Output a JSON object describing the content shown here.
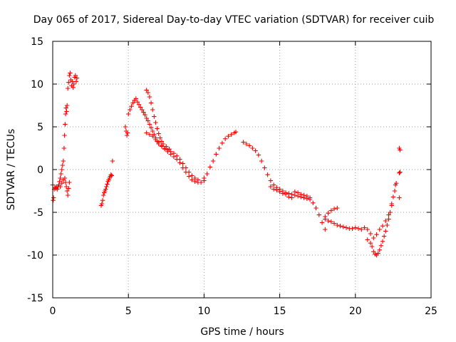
{
  "chart_data": {
    "type": "scatter",
    "title": "Day 065 of 2017, Sidereal Day-to-day VTEC variation (SDTVAR) for receiver cuib",
    "xlabel": "GPS time / hours",
    "ylabel": "SDTVAR / TECUs",
    "xlim": [
      0,
      25
    ],
    "ylim": [
      -15,
      15
    ],
    "x_ticks": [
      0,
      5,
      10,
      15,
      20,
      25
    ],
    "y_ticks": [
      -15,
      -10,
      -5,
      0,
      5,
      10,
      15
    ],
    "x_tick_labels": [
      "0",
      "5",
      "10",
      "15",
      "20",
      "25"
    ],
    "y_tick_labels": [
      "-15",
      "-10",
      "-5",
      "0",
      "5",
      "10",
      "15"
    ],
    "grid": true,
    "marker": "+",
    "color": "#ff0000",
    "series": [
      {
        "name": "SDTVAR",
        "points": [
          [
            0.0,
            -1.8
          ],
          [
            0.03,
            -3.6
          ],
          [
            0.06,
            -3.3
          ],
          [
            0.1,
            -2.3
          ],
          [
            0.15,
            -2.1
          ],
          [
            0.2,
            -2.2
          ],
          [
            0.25,
            -2.0
          ],
          [
            0.3,
            -2.3
          ],
          [
            0.35,
            -2.0
          ],
          [
            0.4,
            -1.8
          ],
          [
            0.45,
            -1.4
          ],
          [
            0.5,
            -1.0
          ],
          [
            0.55,
            -0.5
          ],
          [
            0.6,
            0.0
          ],
          [
            0.65,
            0.5
          ],
          [
            0.7,
            1.0
          ],
          [
            0.75,
            2.5
          ],
          [
            0.78,
            4.0
          ],
          [
            0.82,
            5.3
          ],
          [
            0.85,
            6.5
          ],
          [
            0.88,
            7.2
          ],
          [
            0.92,
            6.8
          ],
          [
            0.95,
            7.5
          ],
          [
            1.0,
            9.5
          ],
          [
            1.05,
            10.2
          ],
          [
            1.1,
            11.0
          ],
          [
            1.15,
            11.3
          ],
          [
            1.2,
            10.5
          ],
          [
            1.25,
            9.8
          ],
          [
            1.3,
            10.3
          ],
          [
            1.35,
            9.6
          ],
          [
            1.4,
            10.0
          ],
          [
            1.45,
            10.8
          ],
          [
            1.5,
            11.0
          ],
          [
            1.55,
            10.3
          ],
          [
            1.6,
            10.7
          ],
          [
            0.8,
            -1.0
          ],
          [
            0.85,
            -1.5
          ],
          [
            0.9,
            -2.0
          ],
          [
            0.95,
            -2.5
          ],
          [
            1.0,
            -3.0
          ],
          [
            1.05,
            -2.2
          ],
          [
            1.1,
            -1.5
          ],
          [
            0.7,
            -1.2
          ],
          [
            0.6,
            -1.6
          ],
          [
            0.5,
            -2.0
          ],
          [
            3.2,
            -4.2
          ],
          [
            3.25,
            -4.0
          ],
          [
            3.3,
            -3.6
          ],
          [
            3.35,
            -3.0
          ],
          [
            3.4,
            -2.7
          ],
          [
            3.45,
            -2.5
          ],
          [
            3.5,
            -2.3
          ],
          [
            3.55,
            -2.0
          ],
          [
            3.6,
            -1.7
          ],
          [
            3.65,
            -1.4
          ],
          [
            3.7,
            -1.2
          ],
          [
            3.75,
            -1.0
          ],
          [
            3.8,
            -0.8
          ],
          [
            3.85,
            -0.6
          ],
          [
            3.9,
            -0.7
          ],
          [
            3.95,
            1.0
          ],
          [
            4.8,
            5.0
          ],
          [
            4.85,
            4.5
          ],
          [
            4.9,
            4.0
          ],
          [
            4.95,
            4.3
          ],
          [
            5.0,
            6.5
          ],
          [
            5.1,
            7.0
          ],
          [
            5.2,
            7.4
          ],
          [
            5.3,
            7.8
          ],
          [
            5.4,
            8.1
          ],
          [
            5.5,
            8.3
          ],
          [
            5.6,
            7.9
          ],
          [
            5.7,
            7.6
          ],
          [
            5.8,
            7.3
          ],
          [
            5.9,
            7.0
          ],
          [
            6.0,
            6.7
          ],
          [
            6.1,
            6.4
          ],
          [
            6.2,
            6.0
          ],
          [
            6.3,
            5.7
          ],
          [
            6.4,
            5.3
          ],
          [
            6.5,
            4.9
          ],
          [
            6.6,
            4.5
          ],
          [
            6.7,
            4.1
          ],
          [
            6.8,
            3.7
          ],
          [
            6.9,
            3.3
          ],
          [
            7.0,
            3.0
          ],
          [
            7.2,
            2.7
          ],
          [
            7.4,
            2.4
          ],
          [
            7.6,
            2.1
          ],
          [
            7.8,
            1.8
          ],
          [
            8.0,
            1.5
          ],
          [
            8.2,
            1.2
          ],
          [
            8.4,
            0.8
          ],
          [
            8.6,
            0.2
          ],
          [
            8.8,
            -0.3
          ],
          [
            9.0,
            -0.8
          ],
          [
            9.2,
            -1.2
          ],
          [
            9.4,
            -1.4
          ],
          [
            9.6,
            -1.5
          ],
          [
            9.8,
            -1.5
          ],
          [
            10.0,
            -1.3
          ],
          [
            6.2,
            4.3
          ],
          [
            6.4,
            4.1
          ],
          [
            6.6,
            3.9
          ],
          [
            6.8,
            3.5
          ],
          [
            7.0,
            3.2
          ],
          [
            7.2,
            2.8
          ],
          [
            7.4,
            2.5
          ],
          [
            7.6,
            2.3
          ],
          [
            7.8,
            2.1
          ],
          [
            8.0,
            1.9
          ],
          [
            8.2,
            1.6
          ],
          [
            8.4,
            1.2
          ],
          [
            8.6,
            0.7
          ],
          [
            8.8,
            0.2
          ],
          [
            9.0,
            -0.3
          ],
          [
            9.2,
            -0.7
          ],
          [
            9.4,
            -1.0
          ],
          [
            9.6,
            -1.2
          ],
          [
            6.2,
            9.3
          ],
          [
            6.3,
            9.0
          ],
          [
            6.4,
            8.5
          ],
          [
            6.5,
            7.8
          ],
          [
            6.6,
            7.0
          ],
          [
            6.7,
            6.2
          ],
          [
            6.8,
            5.5
          ],
          [
            6.9,
            4.8
          ],
          [
            7.0,
            4.2
          ],
          [
            7.1,
            3.7
          ],
          [
            7.2,
            3.3
          ],
          [
            7.3,
            3.0
          ],
          [
            7.5,
            2.7
          ],
          [
            7.7,
            2.4
          ],
          [
            10.0,
            -1.0
          ],
          [
            10.2,
            -0.5
          ],
          [
            10.4,
            0.3
          ],
          [
            10.6,
            1.0
          ],
          [
            10.8,
            1.8
          ],
          [
            11.0,
            2.5
          ],
          [
            11.2,
            3.1
          ],
          [
            11.4,
            3.6
          ],
          [
            11.6,
            3.9
          ],
          [
            11.8,
            4.1
          ],
          [
            12.0,
            4.3
          ],
          [
            12.1,
            4.4
          ],
          [
            12.6,
            3.2
          ],
          [
            12.8,
            3.0
          ],
          [
            13.0,
            2.8
          ],
          [
            13.2,
            2.5
          ],
          [
            13.4,
            2.2
          ],
          [
            13.6,
            1.7
          ],
          [
            13.8,
            1.0
          ],
          [
            14.0,
            0.2
          ],
          [
            14.2,
            -0.6
          ],
          [
            14.4,
            -1.3
          ],
          [
            14.6,
            -1.8
          ],
          [
            14.8,
            -2.1
          ],
          [
            15.0,
            -2.3
          ],
          [
            15.2,
            -2.5
          ],
          [
            15.4,
            -2.7
          ],
          [
            15.6,
            -2.8
          ],
          [
            15.8,
            -2.9
          ],
          [
            16.0,
            -3.0
          ],
          [
            16.2,
            -3.1
          ],
          [
            16.4,
            -3.2
          ],
          [
            16.6,
            -3.3
          ],
          [
            16.8,
            -3.4
          ],
          [
            17.0,
            -3.5
          ],
          [
            17.2,
            -3.9
          ],
          [
            17.4,
            -4.5
          ],
          [
            17.6,
            -5.3
          ],
          [
            17.8,
            -6.2
          ],
          [
            18.0,
            -7.0
          ],
          [
            14.4,
            -2.0
          ],
          [
            14.6,
            -2.3
          ],
          [
            14.8,
            -2.4
          ],
          [
            15.0,
            -2.6
          ],
          [
            15.2,
            -2.8
          ],
          [
            15.4,
            -2.9
          ],
          [
            15.6,
            -3.2
          ],
          [
            15.8,
            -3.3
          ],
          [
            16.0,
            -2.6
          ],
          [
            16.2,
            -2.7
          ],
          [
            16.4,
            -2.9
          ],
          [
            16.6,
            -3.0
          ],
          [
            16.8,
            -3.1
          ],
          [
            17.0,
            -3.3
          ],
          [
            18.0,
            -5.5
          ],
          [
            18.2,
            -5.1
          ],
          [
            18.4,
            -4.8
          ],
          [
            18.6,
            -4.6
          ],
          [
            18.8,
            -4.5
          ],
          [
            18.0,
            -5.8
          ],
          [
            18.2,
            -6.0
          ],
          [
            18.4,
            -6.1
          ],
          [
            18.6,
            -6.3
          ],
          [
            18.8,
            -6.5
          ],
          [
            19.0,
            -6.6
          ],
          [
            19.2,
            -6.7
          ],
          [
            19.4,
            -6.8
          ],
          [
            19.6,
            -6.9
          ],
          [
            19.8,
            -6.9
          ],
          [
            20.0,
            -6.8
          ],
          [
            20.2,
            -6.9
          ],
          [
            20.4,
            -7.0
          ],
          [
            20.6,
            -6.8
          ],
          [
            20.8,
            -7.0
          ],
          [
            21.0,
            -7.5
          ],
          [
            21.1,
            -9.0
          ],
          [
            21.2,
            -9.6
          ],
          [
            21.3,
            -9.9
          ],
          [
            21.4,
            -10.0
          ],
          [
            21.5,
            -9.8
          ],
          [
            21.6,
            -9.4
          ],
          [
            21.7,
            -8.9
          ],
          [
            21.8,
            -8.4
          ],
          [
            21.9,
            -7.8
          ],
          [
            22.0,
            -7.2
          ],
          [
            22.1,
            -6.5
          ],
          [
            22.2,
            -5.8
          ],
          [
            22.3,
            -5.0
          ],
          [
            22.4,
            -4.2
          ],
          [
            22.5,
            -3.2
          ],
          [
            22.6,
            -2.5
          ],
          [
            22.65,
            -1.8
          ],
          [
            22.7,
            -1.6
          ],
          [
            20.8,
            -8.2
          ],
          [
            21.0,
            -8.6
          ],
          [
            21.2,
            -8.0
          ],
          [
            21.4,
            -7.6
          ],
          [
            21.6,
            -7.0
          ],
          [
            21.8,
            -6.6
          ],
          [
            22.0,
            -6.0
          ],
          [
            22.2,
            -5.3
          ],
          [
            22.4,
            -4.0
          ],
          [
            22.9,
            2.5
          ],
          [
            22.95,
            2.3
          ],
          [
            22.9,
            -0.4
          ],
          [
            22.95,
            -0.3
          ],
          [
            22.9,
            -3.3
          ]
        ]
      }
    ]
  }
}
